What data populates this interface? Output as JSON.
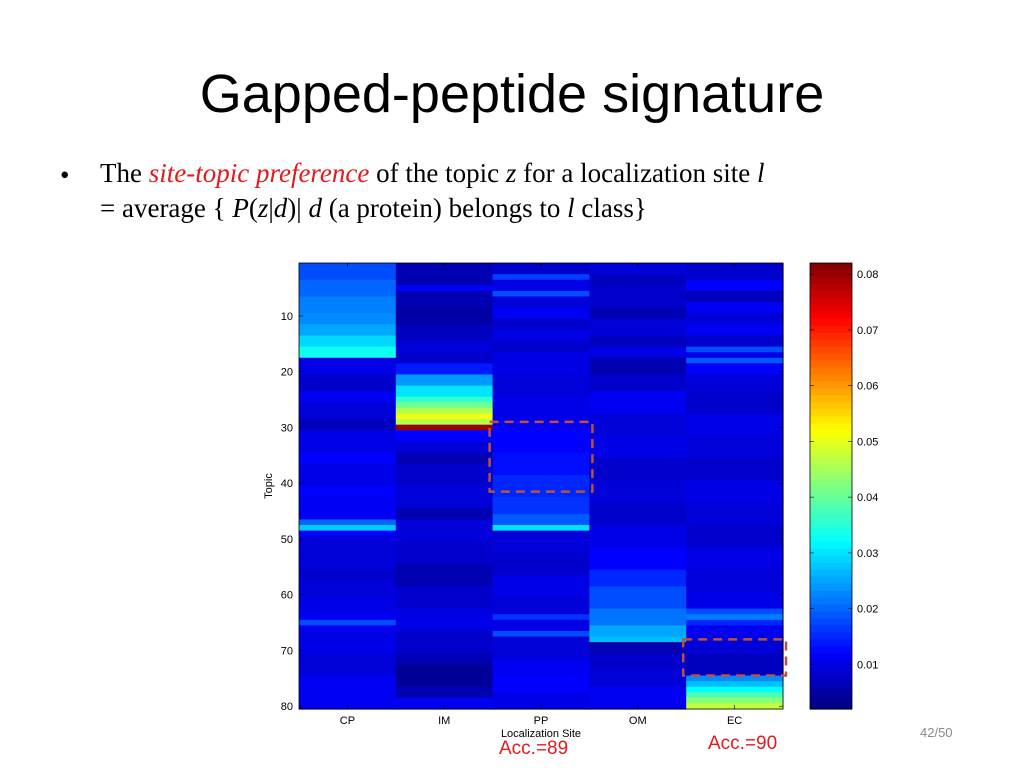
{
  "slide": {
    "title": "Gapped-peptide signature",
    "bullet_symbol": "•",
    "bullet": {
      "t1": "The ",
      "hl": "site-topic preference",
      "t2": " of the topic ",
      "z": "z",
      "t3": " for a localization site ",
      "l": "l",
      "t4": "= average { ",
      "P": "P",
      "paren_open": "(",
      "z2": "z",
      "bar": "|",
      "d": "d",
      "t5": ")| ",
      "d2": "d",
      "t6": " (a protein) belongs to ",
      "l2": "l",
      "t7": " class}"
    },
    "acc_pp": "Acc.=89",
    "acc_ec": "Acc.=90",
    "page": "42/50"
  },
  "colors": {
    "highlight": "#e4191c",
    "box": "#c0503a",
    "page_number": "#8a8a8a"
  },
  "chart_data": {
    "type": "heatmap",
    "xlabel": "Localization Site",
    "ylabel": "Topic",
    "categories": [
      "CP",
      "IM",
      "PP",
      "OM",
      "EC"
    ],
    "y_ticks": [
      10,
      20,
      30,
      40,
      50,
      60,
      70,
      80
    ],
    "ylim": [
      1,
      80
    ],
    "colorbar": {
      "ticks": [
        0.01,
        0.02,
        0.03,
        0.04,
        0.05,
        0.06,
        0.07,
        0.08
      ],
      "range": [
        0.002,
        0.082
      ],
      "colormap": "jet"
    },
    "highlight_boxes": [
      {
        "site": "PP",
        "topics": [
          30,
          41
        ],
        "label": "Acc.=89"
      },
      {
        "site": "EC",
        "topics": [
          69,
          74
        ],
        "label": "Acc.=90"
      }
    ],
    "columns": [
      {
        "site": "CP",
        "segments": [
          [
            1,
            3,
            0.018
          ],
          [
            4,
            6,
            0.02
          ],
          [
            7,
            9,
            0.022
          ],
          [
            10,
            11,
            0.023
          ],
          [
            12,
            13,
            0.025
          ],
          [
            14,
            15,
            0.029
          ],
          [
            16,
            17,
            0.033
          ],
          [
            18,
            20,
            0.01
          ],
          [
            21,
            23,
            0.008
          ],
          [
            24,
            25,
            0.011
          ],
          [
            26,
            28,
            0.009
          ],
          [
            29,
            30,
            0.007
          ],
          [
            31,
            34,
            0.01
          ],
          [
            35,
            36,
            0.012
          ],
          [
            37,
            40,
            0.01
          ],
          [
            41,
            42,
            0.012
          ],
          [
            43,
            46,
            0.011
          ],
          [
            47,
            47,
            0.02
          ],
          [
            48,
            48,
            0.028
          ],
          [
            49,
            49,
            0.012
          ],
          [
            50,
            55,
            0.009
          ],
          [
            56,
            57,
            0.008
          ],
          [
            58,
            60,
            0.009
          ],
          [
            61,
            63,
            0.01
          ],
          [
            64,
            64,
            0.011
          ],
          [
            65,
            65,
            0.018
          ],
          [
            66,
            66,
            0.011
          ],
          [
            67,
            70,
            0.01
          ],
          [
            71,
            74,
            0.009
          ],
          [
            75,
            80,
            0.011
          ]
        ]
      },
      {
        "site": "IM",
        "segments": [
          [
            1,
            4,
            0.006
          ],
          [
            5,
            5,
            0.012
          ],
          [
            6,
            8,
            0.006
          ],
          [
            9,
            11,
            0.005
          ],
          [
            12,
            14,
            0.007
          ],
          [
            15,
            16,
            0.009
          ],
          [
            17,
            18,
            0.008
          ],
          [
            19,
            20,
            0.014
          ],
          [
            21,
            22,
            0.024
          ],
          [
            23,
            24,
            0.03
          ],
          [
            25,
            25,
            0.036
          ],
          [
            26,
            26,
            0.041
          ],
          [
            27,
            27,
            0.046
          ],
          [
            28,
            28,
            0.051
          ],
          [
            29,
            29,
            0.046
          ],
          [
            30,
            30,
            0.08
          ],
          [
            31,
            32,
            0.012
          ],
          [
            33,
            34,
            0.009
          ],
          [
            35,
            36,
            0.006
          ],
          [
            37,
            40,
            0.008
          ],
          [
            41,
            44,
            0.009
          ],
          [
            45,
            46,
            0.006
          ],
          [
            47,
            50,
            0.009
          ],
          [
            51,
            54,
            0.008
          ],
          [
            55,
            58,
            0.006
          ],
          [
            59,
            62,
            0.008
          ],
          [
            63,
            66,
            0.01
          ],
          [
            67,
            70,
            0.008
          ],
          [
            71,
            72,
            0.006
          ],
          [
            73,
            76,
            0.004
          ],
          [
            77,
            78,
            0.006
          ],
          [
            79,
            80,
            0.011
          ]
        ]
      },
      {
        "site": "PP",
        "segments": [
          [
            1,
            2,
            0.008
          ],
          [
            3,
            3,
            0.017
          ],
          [
            4,
            5,
            0.01
          ],
          [
            6,
            6,
            0.018
          ],
          [
            7,
            8,
            0.009
          ],
          [
            9,
            10,
            0.011
          ],
          [
            11,
            12,
            0.008
          ],
          [
            13,
            14,
            0.01
          ],
          [
            15,
            16,
            0.008
          ],
          [
            17,
            20,
            0.01
          ],
          [
            21,
            24,
            0.009
          ],
          [
            25,
            28,
            0.01
          ],
          [
            29,
            30,
            0.011
          ],
          [
            31,
            34,
            0.012
          ],
          [
            35,
            38,
            0.013
          ],
          [
            39,
            42,
            0.015
          ],
          [
            43,
            45,
            0.016
          ],
          [
            46,
            47,
            0.019
          ],
          [
            48,
            48,
            0.03
          ],
          [
            49,
            52,
            0.009
          ],
          [
            53,
            56,
            0.008
          ],
          [
            57,
            60,
            0.01
          ],
          [
            61,
            63,
            0.009
          ],
          [
            64,
            64,
            0.016
          ],
          [
            65,
            66,
            0.01
          ],
          [
            67,
            67,
            0.018
          ],
          [
            68,
            71,
            0.009
          ],
          [
            72,
            74,
            0.011
          ],
          [
            75,
            77,
            0.012
          ],
          [
            78,
            80,
            0.01
          ]
        ]
      },
      {
        "site": "OM",
        "segments": [
          [
            1,
            2,
            0.009
          ],
          [
            3,
            4,
            0.007
          ],
          [
            5,
            8,
            0.008
          ],
          [
            9,
            10,
            0.006
          ],
          [
            11,
            13,
            0.009
          ],
          [
            14,
            15,
            0.007
          ],
          [
            16,
            17,
            0.01
          ],
          [
            18,
            20,
            0.006
          ],
          [
            21,
            23,
            0.008
          ],
          [
            24,
            27,
            0.011
          ],
          [
            28,
            31,
            0.009
          ],
          [
            32,
            35,
            0.01
          ],
          [
            36,
            39,
            0.008
          ],
          [
            40,
            43,
            0.009
          ],
          [
            44,
            47,
            0.008
          ],
          [
            48,
            51,
            0.01
          ],
          [
            52,
            55,
            0.012
          ],
          [
            56,
            58,
            0.015
          ],
          [
            59,
            62,
            0.018
          ],
          [
            63,
            65,
            0.021
          ],
          [
            66,
            67,
            0.025
          ],
          [
            68,
            68,
            0.027
          ],
          [
            69,
            70,
            0.006
          ],
          [
            71,
            73,
            0.008
          ],
          [
            74,
            76,
            0.009
          ],
          [
            77,
            80,
            0.011
          ]
        ]
      },
      {
        "site": "EC",
        "segments": [
          [
            1,
            3,
            0.008
          ],
          [
            4,
            5,
            0.012
          ],
          [
            6,
            7,
            0.007
          ],
          [
            8,
            9,
            0.011
          ],
          [
            10,
            11,
            0.009
          ],
          [
            12,
            13,
            0.011
          ],
          [
            14,
            15,
            0.008
          ],
          [
            16,
            16,
            0.018
          ],
          [
            17,
            17,
            0.01
          ],
          [
            18,
            18,
            0.019
          ],
          [
            19,
            20,
            0.012
          ],
          [
            21,
            23,
            0.009
          ],
          [
            24,
            27,
            0.008
          ],
          [
            28,
            31,
            0.01
          ],
          [
            32,
            35,
            0.009
          ],
          [
            36,
            39,
            0.008
          ],
          [
            40,
            43,
            0.01
          ],
          [
            44,
            47,
            0.009
          ],
          [
            48,
            51,
            0.008
          ],
          [
            52,
            55,
            0.01
          ],
          [
            56,
            59,
            0.009
          ],
          [
            60,
            62,
            0.01
          ],
          [
            63,
            63,
            0.018
          ],
          [
            64,
            64,
            0.022
          ],
          [
            65,
            65,
            0.015
          ],
          [
            66,
            67,
            0.011
          ],
          [
            68,
            70,
            0.009
          ],
          [
            71,
            74,
            0.007
          ],
          [
            75,
            75,
            0.023
          ],
          [
            76,
            76,
            0.027
          ],
          [
            77,
            77,
            0.032
          ],
          [
            78,
            78,
            0.038
          ],
          [
            79,
            79,
            0.043
          ],
          [
            80,
            80,
            0.047
          ]
        ]
      }
    ]
  }
}
